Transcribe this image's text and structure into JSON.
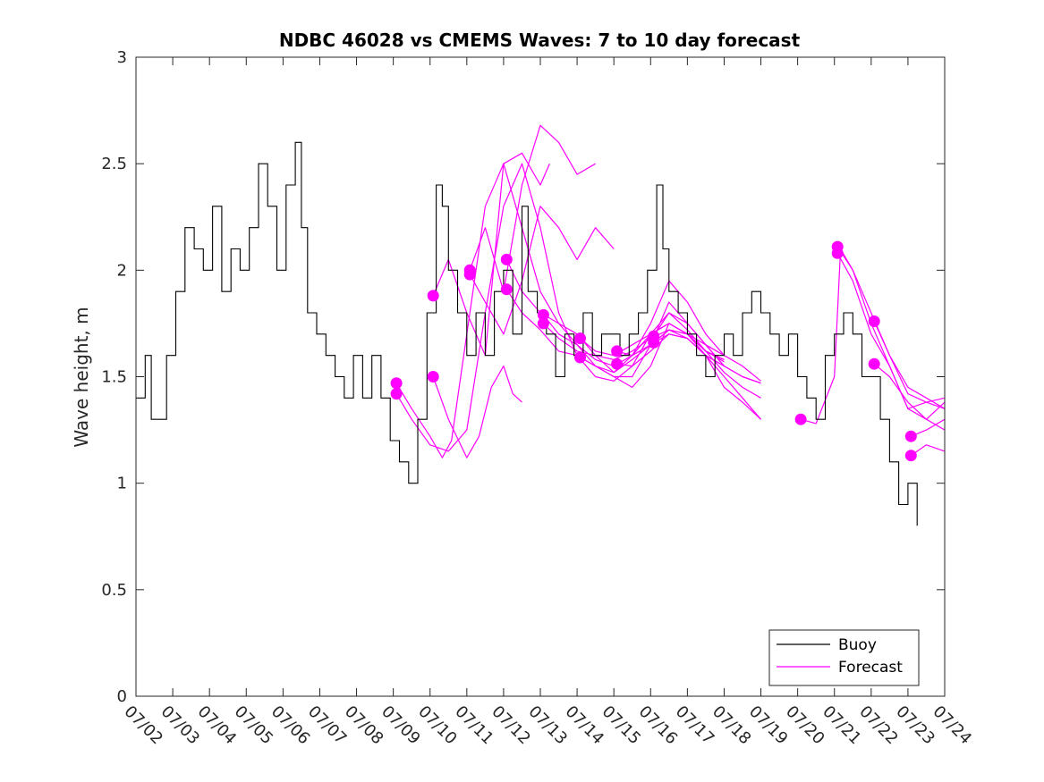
{
  "chart_data": {
    "type": "line",
    "title": "NDBC 46028 vs CMEMS Waves: 7 to 10 day forecast",
    "xlabel": "",
    "ylabel": "Wave height, m",
    "xlim": [
      "07/02",
      "07/24"
    ],
    "ylim": [
      0,
      3
    ],
    "x_ticks": [
      "07/02",
      "07/03",
      "07/04",
      "07/05",
      "07/06",
      "07/07",
      "07/08",
      "07/09",
      "07/10",
      "07/11",
      "07/12",
      "07/13",
      "07/14",
      "07/15",
      "07/16",
      "07/17",
      "07/18",
      "07/19",
      "07/20",
      "07/21",
      "07/22",
      "07/23",
      "07/24"
    ],
    "y_ticks": [
      "0",
      "0.5",
      "1",
      "1.5",
      "2",
      "2.5",
      "3"
    ],
    "grid": false,
    "legend": {
      "position": "bottom-right",
      "entries": [
        "Buoy",
        "Forecast"
      ]
    },
    "colors": {
      "buoy": "#000000",
      "forecast": "#ff00ff"
    },
    "series": [
      {
        "name": "Buoy",
        "x": [
          "07/02 00:00",
          "07/02 06:00",
          "07/02 10:00",
          "07/02 14:00",
          "07/02 20:00",
          "07/03 02:00",
          "07/03 08:00",
          "07/03 14:00",
          "07/03 20:00",
          "07/04 02:00",
          "07/04 08:00",
          "07/04 14:00",
          "07/04 20:00",
          "07/05 02:00",
          "07/05 08:00",
          "07/05 14:00",
          "07/05 20:00",
          "07/06 02:00",
          "07/06 08:00",
          "07/06 12:00",
          "07/06 16:00",
          "07/06 22:00",
          "07/07 04:00",
          "07/07 10:00",
          "07/07 16:00",
          "07/07 22:00",
          "07/08 04:00",
          "07/08 10:00",
          "07/08 16:00",
          "07/08 22:00",
          "07/09 04:00",
          "07/09 10:00",
          "07/09 16:00",
          "07/09 22:00",
          "07/10 04:00",
          "07/10 08:00",
          "07/10 12:00",
          "07/10 18:00",
          "07/11 00:00",
          "07/11 06:00",
          "07/11 12:00",
          "07/11 18:00",
          "07/12 00:00",
          "07/12 06:00",
          "07/12 12:00",
          "07/12 16:00",
          "07/12 22:00",
          "07/13 04:00",
          "07/13 10:00",
          "07/13 16:00",
          "07/13 22:00",
          "07/14 04:00",
          "07/14 10:00",
          "07/14 16:00",
          "07/14 22:00",
          "07/15 04:00",
          "07/15 10:00",
          "07/15 16:00",
          "07/15 22:00",
          "07/16 04:00",
          "07/16 08:00",
          "07/16 12:00",
          "07/16 18:00",
          "07/17 00:00",
          "07/17 06:00",
          "07/17 12:00",
          "07/17 18:00",
          "07/18 00:00",
          "07/18 06:00",
          "07/18 12:00",
          "07/18 18:00",
          "07/19 00:00",
          "07/19 06:00",
          "07/19 12:00",
          "07/19 18:00",
          "07/20 00:00",
          "07/20 06:00",
          "07/20 12:00",
          "07/20 18:00",
          "07/21 00:00",
          "07/21 06:00",
          "07/21 12:00",
          "07/21 18:00",
          "07/22 00:00",
          "07/22 06:00",
          "07/22 12:00",
          "07/22 18:00",
          "07/23 00:00",
          "07/23 06:00"
        ],
        "y": [
          1.4,
          1.6,
          1.3,
          1.3,
          1.6,
          1.9,
          2.2,
          2.1,
          2.0,
          2.3,
          1.9,
          2.1,
          2.0,
          2.2,
          2.5,
          2.3,
          2.0,
          2.4,
          2.6,
          2.2,
          1.8,
          1.7,
          1.6,
          1.5,
          1.4,
          1.6,
          1.4,
          1.6,
          1.4,
          1.2,
          1.1,
          1.0,
          1.3,
          1.8,
          2.4,
          2.3,
          2.0,
          1.8,
          1.6,
          1.8,
          1.6,
          1.9,
          2.0,
          1.7,
          2.3,
          1.9,
          1.8,
          1.7,
          1.5,
          1.7,
          1.6,
          1.8,
          1.6,
          1.7,
          1.7,
          1.6,
          1.7,
          1.8,
          2.0,
          2.4,
          2.1,
          1.9,
          1.8,
          1.7,
          1.6,
          1.5,
          1.6,
          1.7,
          1.6,
          1.8,
          1.9,
          1.8,
          1.7,
          1.6,
          1.7,
          1.5,
          1.4,
          1.3,
          1.6,
          1.7,
          1.8,
          1.7,
          1.5,
          1.5,
          1.3,
          1.1,
          0.9,
          1.0,
          0.8
        ]
      },
      {
        "name": "Forecast",
        "runs": [
          {
            "x": [
              "07/09 02:00",
              "07/09 12:00",
              "07/10 00:00",
              "07/10 12:00",
              "07/11 00:00",
              "07/11 12:00",
              "07/12 00:00",
              "07/12 12:00",
              "07/13 00:00",
              "07/13 12:00",
              "07/14 00:00",
              "07/14 12:00",
              "07/15 00:00",
              "07/15 12:00",
              "07/16 00:00",
              "07/16 12:00",
              "07/17 00:00",
              "07/17 12:00",
              "07/18 00:00",
              "07/18 12:00",
              "07/19 00:00"
            ],
            "y": [
              1.42,
              1.3,
              1.18,
              1.15,
              1.25,
              1.8,
              2.3,
              2.5,
              2.2,
              1.8,
              1.6,
              1.55,
              1.5,
              1.45,
              1.55,
              1.75,
              1.7,
              1.6,
              1.5,
              1.4,
              1.3
            ]
          },
          {
            "x": [
              "07/09 02:00",
              "07/09 12:00",
              "07/10 00:00",
              "07/10 08:00",
              "07/10 14:00",
              "07/11 00:00",
              "07/11 12:00",
              "07/12 00:00",
              "07/12 12:00",
              "07/13 00:00",
              "07/13 12:00",
              "07/14 00:00",
              "07/14 12:00",
              "07/15 00:00",
              "07/15 12:00",
              "07/16 00:00",
              "07/16 12:00",
              "07/17 00:00",
              "07/17 12:00",
              "07/18 00:00",
              "07/18 12:00",
              "07/19 00:00"
            ],
            "y": [
              1.47,
              1.35,
              1.22,
              1.12,
              1.2,
              1.7,
              2.3,
              2.5,
              2.2,
              1.9,
              1.75,
              1.65,
              1.55,
              1.5,
              1.5,
              1.65,
              1.85,
              1.75,
              1.65,
              1.55,
              1.5,
              1.47
            ]
          },
          {
            "x": [
              "07/10 02:00",
              "07/10 12:00",
              "07/11 00:00",
              "07/11 08:00",
              "07/11 16:00",
              "07/12 00:00",
              "07/12 06:00",
              "07/12 12:00"
            ],
            "y": [
              1.5,
              1.3,
              1.12,
              1.22,
              1.45,
              1.55,
              1.42,
              1.38
            ]
          },
          {
            "x": [
              "07/10 02:00",
              "07/10 12:00",
              "07/11 00:00",
              "07/11 12:00",
              "07/12 00:00",
              "07/12 12:00",
              "07/13 00:00",
              "07/13 06:00"
            ],
            "y": [
              1.88,
              2.05,
              1.8,
              1.6,
              2.5,
              2.55,
              2.4,
              2.5
            ]
          },
          {
            "x": [
              "07/11 02:00",
              "07/11 12:00",
              "07/12 00:00",
              "07/12 12:00",
              "07/13 00:00",
              "07/13 12:00",
              "07/14 00:00",
              "07/14 12:00"
            ],
            "y": [
              2.0,
              2.2,
              1.9,
              2.4,
              2.68,
              2.6,
              2.45,
              2.5
            ]
          },
          {
            "x": [
              "07/11 02:00",
              "07/11 12:00",
              "07/12 00:00",
              "07/12 12:00",
              "07/13 00:00",
              "07/13 12:00",
              "07/14 00:00",
              "07/14 12:00",
              "07/15 00:00"
            ],
            "y": [
              1.98,
              1.85,
              1.7,
              1.95,
              2.3,
              2.2,
              2.05,
              2.2,
              2.1
            ]
          },
          {
            "x": [
              "07/12 02:00",
              "07/12 12:00",
              "07/13 00:00",
              "07/13 12:00",
              "07/14 00:00",
              "07/14 12:00",
              "07/15 00:00",
              "07/15 12:00",
              "07/16 00:00",
              "07/16 12:00",
              "07/17 00:00",
              "07/17 12:00",
              "07/18 00:00",
              "07/18 12:00",
              "07/19 00:00"
            ],
            "y": [
              2.05,
              1.9,
              1.8,
              1.75,
              1.7,
              1.6,
              1.52,
              1.6,
              1.75,
              1.95,
              1.85,
              1.7,
              1.6,
              1.55,
              1.48
            ]
          },
          {
            "x": [
              "07/12 02:00",
              "07/12 12:00",
              "07/13 00:00",
              "07/13 12:00",
              "07/14 00:00",
              "07/14 12:00",
              "07/15 00:00",
              "07/15 12:00",
              "07/16 00:00",
              "07/16 12:00",
              "07/17 00:00",
              "07/17 12:00",
              "07/18 00:00",
              "07/18 12:00",
              "07/19 00:00"
            ],
            "y": [
              1.91,
              1.8,
              1.72,
              1.62,
              1.6,
              1.5,
              1.48,
              1.55,
              1.7,
              1.8,
              1.72,
              1.62,
              1.52,
              1.45,
              1.4
            ]
          },
          {
            "x": [
              "07/13 02:00",
              "07/13 12:00",
              "07/14 00:00",
              "07/14 12:00",
              "07/15 00:00",
              "07/15 12:00",
              "07/16 00:00",
              "07/16 12:00",
              "07/17 00:00",
              "07/17 12:00",
              "07/18 00:00"
            ],
            "y": [
              1.79,
              1.7,
              1.65,
              1.58,
              1.55,
              1.6,
              1.7,
              1.75,
              1.7,
              1.62,
              1.57
            ]
          },
          {
            "x": [
              "07/13 02:00",
              "07/13 12:00",
              "07/14 00:00",
              "07/14 12:00",
              "07/15 00:00",
              "07/15 12:00",
              "07/16 00:00",
              "07/16 12:00",
              "07/17 00:00",
              "07/17 12:00",
              "07/18 00:00"
            ],
            "y": [
              1.75,
              1.68,
              1.62,
              1.6,
              1.58,
              1.62,
              1.68,
              1.72,
              1.7,
              1.65,
              1.6
            ]
          },
          {
            "x": [
              "07/14 02:00",
              "07/14 12:00",
              "07/15 00:00",
              "07/15 12:00",
              "07/16 00:00",
              "07/16 12:00",
              "07/17 00:00",
              "07/17 12:00",
              "07/18 00:00"
            ],
            "y": [
              1.68,
              1.62,
              1.6,
              1.65,
              1.7,
              1.75,
              1.7,
              1.62,
              1.58
            ]
          },
          {
            "x": [
              "07/14 02:00",
              "07/14 12:00",
              "07/15 00:00",
              "07/15 12:00",
              "07/16 00:00",
              "07/16 12:00",
              "07/17 00:00",
              "07/17 12:00",
              "07/18 00:00"
            ],
            "y": [
              1.59,
              1.55,
              1.52,
              1.58,
              1.65,
              1.7,
              1.68,
              1.6,
              1.55
            ]
          },
          {
            "x": [
              "07/15 02:00",
              "07/15 12:00",
              "07/16 00:00",
              "07/16 12:00",
              "07/17 00:00",
              "07/17 12:00",
              "07/18 00:00"
            ],
            "y": [
              1.62,
              1.6,
              1.65,
              1.72,
              1.7,
              1.62,
              1.58
            ]
          },
          {
            "x": [
              "07/15 02:00",
              "07/15 12:00",
              "07/16 00:00",
              "07/16 12:00",
              "07/17 00:00",
              "07/17 12:00",
              "07/18 00:00"
            ],
            "y": [
              1.56,
              1.55,
              1.62,
              1.7,
              1.68,
              1.6,
              1.55
            ]
          },
          {
            "x": [
              "07/16 02:00",
              "07/16 12:00",
              "07/17 00:00",
              "07/17 12:00",
              "07/18 00:00",
              "07/18 12:00",
              "07/19 00:00"
            ],
            "y": [
              1.69,
              1.8,
              1.75,
              1.65,
              1.55,
              1.5,
              1.47
            ]
          },
          {
            "x": [
              "07/16 02:00",
              "07/16 12:00",
              "07/17 00:00",
              "07/17 12:00",
              "07/18 00:00",
              "07/18 12:00",
              "07/19 00:00"
            ],
            "y": [
              1.66,
              1.72,
              1.68,
              1.6,
              1.45,
              1.38,
              1.3
            ]
          },
          {
            "x": [
              "07/20 02:00",
              "07/20 12:00",
              "07/21 00:00",
              "07/21 04:00",
              "07/21 12:00",
              "07/22 00:00",
              "07/22 12:00",
              "07/23 00:00",
              "07/23 12:00",
              "07/24 00:00"
            ],
            "y": [
              1.3,
              1.28,
              1.5,
              2.1,
              2.0,
              1.75,
              1.55,
              1.35,
              1.38,
              1.4
            ]
          },
          {
            "x": [
              "07/21 02:00",
              "07/21 12:00",
              "07/22 00:00",
              "07/22 12:00",
              "07/23 00:00",
              "07/23 12:00",
              "07/24 00:00"
            ],
            "y": [
              2.08,
              1.95,
              1.7,
              1.55,
              1.35,
              1.3,
              1.38
            ]
          },
          {
            "x": [
              "07/21 02:00",
              "07/21 12:00",
              "07/22 00:00",
              "07/22 12:00",
              "07/23 00:00",
              "07/23 12:00",
              "07/24 00:00"
            ],
            "y": [
              2.11,
              2.0,
              1.8,
              1.6,
              1.42,
              1.38,
              1.35
            ]
          },
          {
            "x": [
              "07/22 02:00",
              "07/22 12:00",
              "07/23 00:00",
              "07/23 12:00",
              "07/24 00:00"
            ],
            "y": [
              1.76,
              1.6,
              1.45,
              1.4,
              1.35
            ]
          },
          {
            "x": [
              "07/22 02:00",
              "07/22 12:00",
              "07/23 00:00",
              "07/23 12:00",
              "07/24 00:00"
            ],
            "y": [
              1.56,
              1.5,
              1.38,
              1.3,
              1.25
            ]
          },
          {
            "x": [
              "07/23 02:00",
              "07/23 12:00",
              "07/24 00:00"
            ],
            "y": [
              1.22,
              1.25,
              1.3
            ]
          },
          {
            "x": [
              "07/23 02:00",
              "07/23 12:00",
              "07/24 00:00"
            ],
            "y": [
              1.13,
              1.18,
              1.15
            ]
          }
        ],
        "markers": {
          "x": [
            "07/09 02:00",
            "07/09 02:00",
            "07/10 02:00",
            "07/10 02:00",
            "07/11 02:00",
            "07/11 02:00",
            "07/12 02:00",
            "07/12 02:00",
            "07/13 02:00",
            "07/13 02:00",
            "07/14 02:00",
            "07/14 02:00",
            "07/15 02:00",
            "07/15 02:00",
            "07/16 02:00",
            "07/16 02:00",
            "07/20 02:00",
            "07/21 02:00",
            "07/21 02:00",
            "07/22 02:00",
            "07/22 02:00",
            "07/23 02:00",
            "07/23 02:00"
          ],
          "y": [
            1.42,
            1.47,
            1.5,
            1.88,
            1.98,
            2.0,
            1.91,
            2.05,
            1.75,
            1.79,
            1.59,
            1.68,
            1.56,
            1.62,
            1.66,
            1.69,
            1.3,
            2.08,
            2.11,
            1.56,
            1.76,
            1.13,
            1.22
          ]
        }
      }
    ]
  }
}
